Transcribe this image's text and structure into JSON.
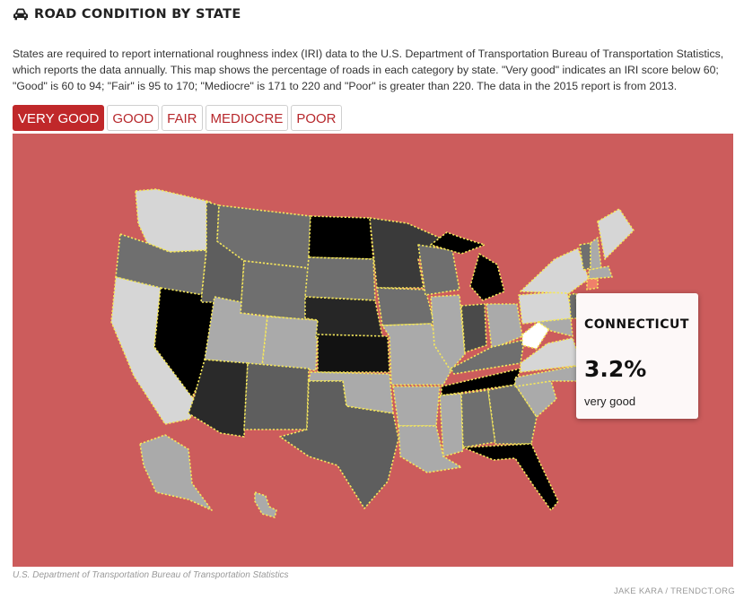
{
  "header": {
    "icon": "car-icon",
    "title": "ROAD CONDITION BY STATE"
  },
  "description": "States are required to report international roughness index (IRI) data to the U.S. Department of Transportation Bureau of Transportation Statistics, which reports the data annually. This map shows the percentage of roads in each category by state. \"Very good\" indicates an IRI score below 60; \"Good\" is 60 to 94; \"Fair\" is 95 to 170; \"Mediocre\" is 171 to 220 and \"Poor\" is greater than 220. The data in the 2015 report is from 2013.",
  "tabs": [
    {
      "label": "VERY GOOD",
      "active": true
    },
    {
      "label": "GOOD",
      "active": false
    },
    {
      "label": "FAIR",
      "active": false
    },
    {
      "label": "MEDIOCRE",
      "active": false
    },
    {
      "label": "POOR",
      "active": false
    }
  ],
  "map": {
    "colors": {
      "background": "#cc5c5c",
      "border": "#f5e85c",
      "highlight": "#f0806a",
      "accent": "#c0282a"
    },
    "selected_category": "very good"
  },
  "tooltip": {
    "state": "CONNECTICUT",
    "value": "3.2%",
    "category": "very good"
  },
  "footer": {
    "source": "U.S. Department of Transportation Bureau of Transportation Statistics",
    "credit": "JAKE KARA / TRENDCT.ORG"
  }
}
